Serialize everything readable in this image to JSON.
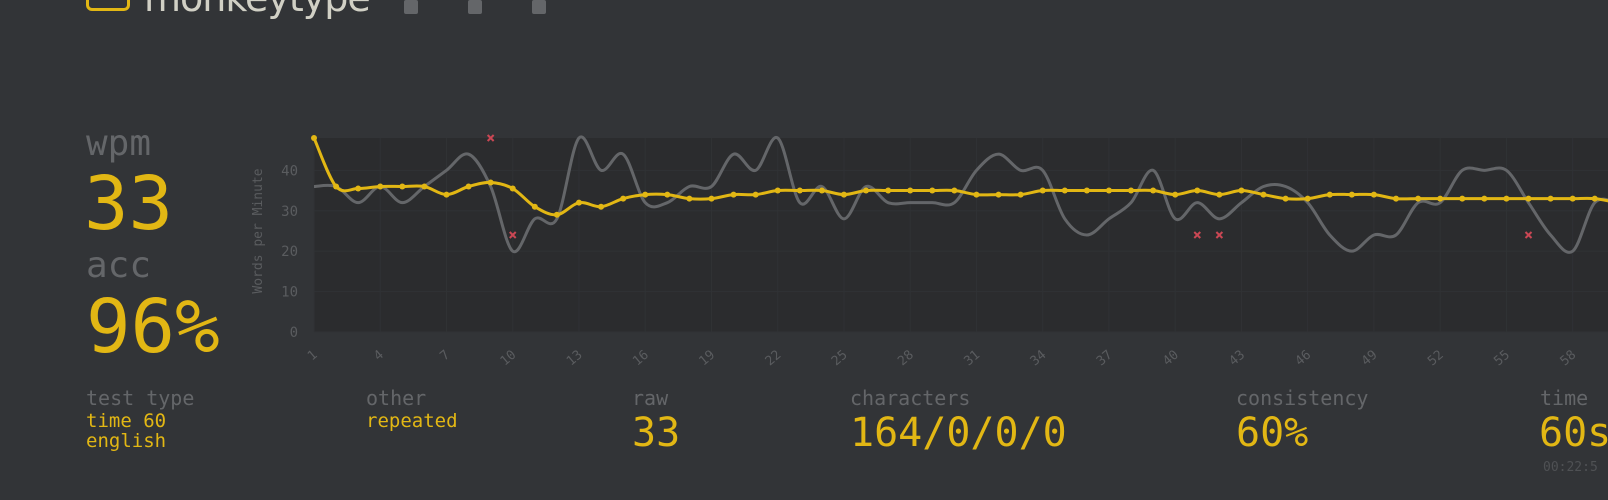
{
  "header": {
    "brand": "monkeytype",
    "logo_icon": "keyboard-icon",
    "nav_icons": [
      "keyboard-icon",
      "crown-icon",
      "info-icon"
    ]
  },
  "stats": {
    "wpm_label": "wpm",
    "wpm_value": "33",
    "acc_label": "acc",
    "acc_value": "96%"
  },
  "chart_data": {
    "type": "line",
    "ylabel": "Words per Minute",
    "y_ticks": [
      0,
      10,
      20,
      30,
      40
    ],
    "ylim": [
      0,
      48
    ],
    "x_tick_labels": [
      "1",
      "4",
      "7",
      "10",
      "13",
      "16",
      "19",
      "22",
      "25",
      "28",
      "31",
      "34",
      "37",
      "40",
      "43",
      "46",
      "49",
      "52",
      "55",
      "58"
    ],
    "x": [
      1,
      2,
      3,
      4,
      5,
      6,
      7,
      8,
      9,
      10,
      11,
      12,
      13,
      14,
      15,
      16,
      17,
      18,
      19,
      20,
      21,
      22,
      23,
      24,
      25,
      26,
      27,
      28,
      29,
      30,
      31,
      32,
      33,
      34,
      35,
      36,
      37,
      38,
      39,
      40,
      41,
      42,
      43,
      44,
      45,
      46,
      47,
      48,
      49,
      50,
      51,
      52,
      53,
      54,
      55,
      56,
      57,
      58,
      59,
      60
    ],
    "series": [
      {
        "name": "wpm",
        "color": "#e2b714",
        "values": [
          48,
          36,
          35.5,
          36,
          36,
          36,
          34,
          36,
          37,
          35.5,
          31,
          29,
          32,
          31,
          33,
          34,
          34,
          33,
          33,
          34,
          34,
          35,
          35,
          35,
          34,
          35,
          35,
          35,
          35,
          35,
          34,
          34,
          34,
          35,
          35,
          35,
          35,
          35,
          35,
          34,
          35,
          34,
          35,
          34,
          33,
          33,
          34,
          34,
          34,
          33,
          33,
          33,
          33,
          33,
          33,
          33,
          33,
          33,
          33,
          32
        ]
      },
      {
        "name": "raw",
        "color": "#646669",
        "values": [
          36,
          36,
          32,
          36,
          32,
          36,
          40,
          44,
          36,
          20,
          28,
          28,
          48,
          40,
          44,
          32,
          32,
          36,
          36,
          44,
          40,
          48,
          32,
          36,
          28,
          36,
          32,
          32,
          32,
          32,
          40,
          44,
          40,
          40,
          28,
          24,
          28,
          32,
          40,
          28,
          32,
          28,
          32,
          36,
          36,
          32,
          24,
          20,
          24,
          24,
          32,
          32,
          40,
          40,
          40,
          32,
          24,
          20,
          32,
          32
        ]
      }
    ],
    "errors": [
      {
        "x": 9,
        "y": 48
      },
      {
        "x": 10,
        "y": 24
      },
      {
        "x": 41,
        "y": 24
      },
      {
        "x": 42,
        "y": 24
      },
      {
        "x": 56,
        "y": 24
      }
    ],
    "grid": true
  },
  "bottom": {
    "test_type_label": "test type",
    "test_type_line1": "time 60",
    "test_type_line2": "english",
    "other_label": "other",
    "other_value": "repeated",
    "raw_label": "raw",
    "raw_value": "33",
    "characters_label": "characters",
    "characters_value": "164/0/0/0",
    "consistency_label": "consistency",
    "consistency_value": "60%",
    "time_label": "time",
    "time_value": "60s",
    "time_clock": "00:22:5"
  }
}
